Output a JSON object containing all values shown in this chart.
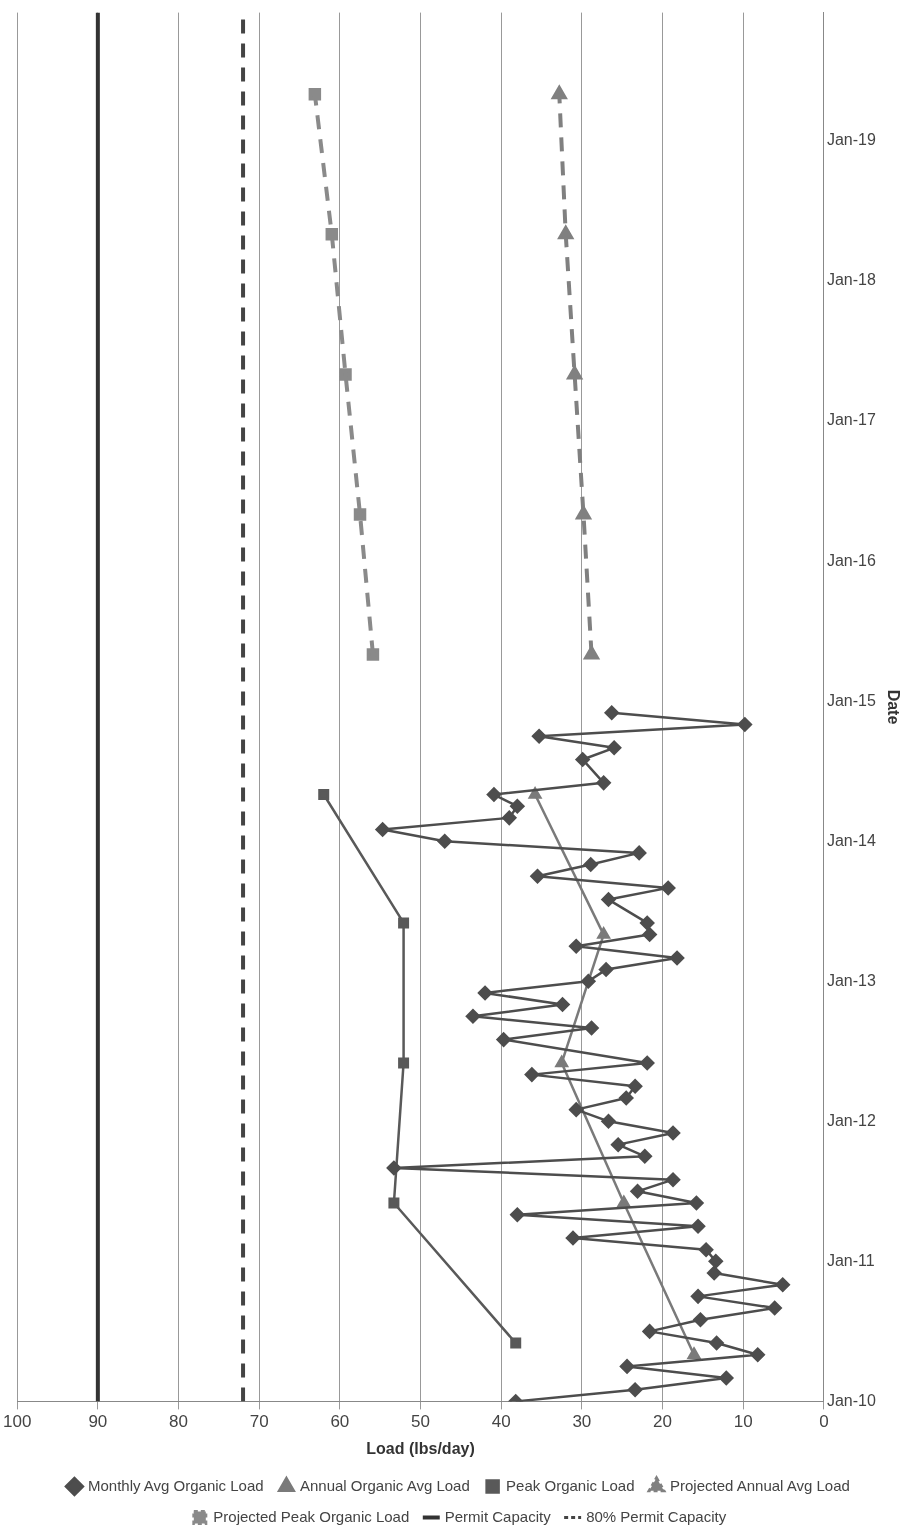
{
  "chart_data": {
    "type": "line",
    "orientation": "horizontal",
    "xlabel": "Load (lbs/day)",
    "ylabel": "Date",
    "ylim": [
      "2010-01",
      "2019-12"
    ],
    "yticks": [
      {
        "value": "2010-01",
        "label": "Jan-10"
      },
      {
        "value": "2011-01",
        "label": "Jan-11"
      },
      {
        "value": "2012-01",
        "label": "Jan-12"
      },
      {
        "value": "2013-01",
        "label": "Jan-13"
      },
      {
        "value": "2014-01",
        "label": "Jan-14"
      },
      {
        "value": "2015-01",
        "label": "Jan-15"
      },
      {
        "value": "2016-01",
        "label": "Jan-16"
      },
      {
        "value": "2017-01",
        "label": "Jan-17"
      },
      {
        "value": "2018-01",
        "label": "Jan-18"
      },
      {
        "value": "2019-01",
        "label": "Jan-19"
      }
    ],
    "xlim": [
      100,
      0
    ],
    "xticks": [
      100,
      90,
      80,
      70,
      60,
      50,
      40,
      30,
      20,
      10,
      0
    ],
    "grid": "x",
    "legend": "bottom",
    "series": [
      {
        "name": "Monthly Avg Organic Load",
        "color": "#4d4d4d",
        "marker": "diamond",
        "line_style": "solid",
        "x": [
          "2010-01",
          "2010-02",
          "2010-03",
          "2010-04",
          "2010-05",
          "2010-06",
          "2010-07",
          "2010-08",
          "2010-09",
          "2010-10",
          "2010-11",
          "2010-12",
          "2011-01",
          "2011-02",
          "2011-03",
          "2011-04",
          "2011-05",
          "2011-06",
          "2011-07",
          "2011-08",
          "2011-09",
          "2011-10",
          "2011-11",
          "2011-12",
          "2012-01",
          "2012-02",
          "2012-03",
          "2012-04",
          "2012-05",
          "2012-06",
          "2012-08",
          "2012-09",
          "2012-10",
          "2012-11",
          "2012-12",
          "2013-01",
          "2013-02",
          "2013-03",
          "2013-04",
          "2013-05",
          "2013-06",
          "2013-08",
          "2013-09",
          "2013-10",
          "2013-11",
          "2013-12",
          "2014-01",
          "2014-02",
          "2014-03",
          "2014-04",
          "2014-05",
          "2014-06",
          "2014-08",
          "2014-09",
          "2014-10",
          "2014-11",
          "2014-12"
        ],
        "values": [
          38.2,
          23.4,
          12.1,
          24.4,
          8.2,
          13.3,
          21.6,
          15.3,
          6.1,
          15.6,
          5.1,
          13.6,
          13.4,
          14.6,
          31.1,
          15.6,
          38.0,
          15.8,
          23.1,
          18.7,
          53.3,
          22.2,
          25.5,
          18.7,
          26.7,
          30.7,
          24.5,
          23.4,
          36.2,
          21.9,
          39.7,
          28.8,
          43.5,
          32.4,
          42.0,
          29.2,
          27.0,
          18.2,
          30.7,
          21.6,
          21.9,
          26.7,
          19.3,
          35.5,
          28.9,
          22.9,
          47.0,
          54.7,
          39.0,
          38.0,
          40.9,
          27.3,
          29.9,
          26.0,
          35.3,
          9.8,
          26.3
        ]
      },
      {
        "name": "Annual Organic Avg Load",
        "color": "#7a7a7a",
        "marker": "triangle",
        "line_style": "solid",
        "x": [
          "2010-05",
          "2011-06",
          "2012-06",
          "2013-05",
          "2014-05"
        ],
        "values": [
          16.1,
          24.8,
          32.5,
          27.3,
          35.8
        ]
      },
      {
        "name": "Peak Organic Load",
        "color": "#595959",
        "marker": "square",
        "line_style": "solid",
        "x": [
          "2010-06",
          "2011-06",
          "2012-06",
          "2013-06",
          "2014-05"
        ],
        "values": [
          38.2,
          53.3,
          52.1,
          52.1,
          62.0
        ]
      },
      {
        "name": "Projected Annual Avg Load",
        "color": "#808080",
        "marker": "triangle",
        "line_style": "dashed",
        "x": [
          "2015-05",
          "2016-05",
          "2017-05",
          "2018-05",
          "2019-05"
        ],
        "values": [
          28.8,
          29.8,
          30.9,
          32.0,
          32.8
        ]
      },
      {
        "name": "Projected Peak Organic Load",
        "color": "#8a8a8a",
        "marker": "square",
        "line_style": "dashed",
        "x": [
          "2015-05",
          "2016-05",
          "2017-05",
          "2018-05",
          "2019-05"
        ],
        "values": [
          55.9,
          57.5,
          59.3,
          61.0,
          63.1
        ]
      },
      {
        "name": "Permit Capacity",
        "color": "#333333",
        "marker": "none",
        "line_style": "solid",
        "x": [
          "2010-01",
          "2019-12"
        ],
        "values": [
          90,
          90
        ]
      },
      {
        "name": "80% Permit Capacity",
        "color": "#444444",
        "marker": "none",
        "line_style": "dashed",
        "x": [
          "2010-01",
          "2019-12"
        ],
        "values": [
          72,
          72
        ]
      }
    ]
  }
}
